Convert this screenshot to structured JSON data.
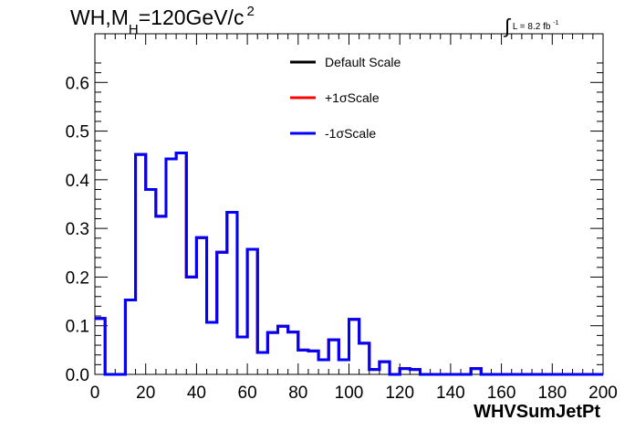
{
  "chart_data": {
    "type": "histogram",
    "title_main": "WH,M",
    "title_sub": "H",
    "title_rest": "=120GeV/c",
    "title_sup": "2",
    "lumi_text": "L = 8.2 fb",
    "lumi_sup": "-1",
    "xlabel": "WHVSumJetPt",
    "ylabel": "",
    "xlim": [
      0,
      200
    ],
    "ylim": [
      0,
      0.7
    ],
    "x_ticks": [
      "0",
      "20",
      "40",
      "60",
      "80",
      "100",
      "120",
      "140",
      "160",
      "180",
      "200"
    ],
    "y_ticks": [
      "0.0",
      "0.1",
      "0.2",
      "0.3",
      "0.4",
      "0.5",
      "0.6"
    ],
    "bin_width": 4,
    "bin_edges_start": 0,
    "legend_position": "top-center",
    "series": [
      {
        "name": "Default Scale",
        "color": "#000000",
        "values": [
          0.115,
          0.0,
          0.0,
          0.153,
          0.452,
          0.38,
          0.325,
          0.443,
          0.455,
          0.2,
          0.281,
          0.107,
          0.251,
          0.333,
          0.077,
          0.257,
          0.045,
          0.086,
          0.099,
          0.087,
          0.05,
          0.048,
          0.03,
          0.071,
          0.03,
          0.113,
          0.064,
          0.01,
          0.026,
          0.0,
          0.012,
          0.01,
          0.0,
          0.0,
          0.0,
          0.0,
          0.0,
          0.012,
          0.0,
          0.0,
          0.0,
          0.0,
          0.0,
          0.0,
          0.0,
          0.0,
          0.0,
          0.0,
          0.0,
          0.0
        ]
      },
      {
        "name": "+1σScale",
        "color": "#ff0000",
        "values": [
          0.115,
          0.0,
          0.0,
          0.153,
          0.452,
          0.38,
          0.325,
          0.443,
          0.455,
          0.2,
          0.281,
          0.107,
          0.251,
          0.333,
          0.077,
          0.257,
          0.045,
          0.086,
          0.099,
          0.087,
          0.05,
          0.048,
          0.03,
          0.071,
          0.03,
          0.113,
          0.064,
          0.01,
          0.026,
          0.0,
          0.012,
          0.01,
          0.0,
          0.0,
          0.0,
          0.0,
          0.0,
          0.012,
          0.0,
          0.0,
          0.0,
          0.0,
          0.0,
          0.0,
          0.0,
          0.0,
          0.0,
          0.0,
          0.0,
          0.0
        ]
      },
      {
        "name": "-1σScale",
        "color": "#0000ff",
        "values": [
          0.115,
          0.0,
          0.0,
          0.153,
          0.452,
          0.38,
          0.325,
          0.443,
          0.455,
          0.2,
          0.281,
          0.107,
          0.251,
          0.333,
          0.077,
          0.257,
          0.045,
          0.086,
          0.099,
          0.087,
          0.05,
          0.048,
          0.03,
          0.071,
          0.03,
          0.113,
          0.064,
          0.01,
          0.026,
          0.0,
          0.012,
          0.01,
          0.0,
          0.0,
          0.0,
          0.0,
          0.0,
          0.012,
          0.0,
          0.0,
          0.0,
          0.0,
          0.0,
          0.0,
          0.0,
          0.0,
          0.0,
          0.0,
          0.0,
          0.0
        ]
      }
    ]
  }
}
